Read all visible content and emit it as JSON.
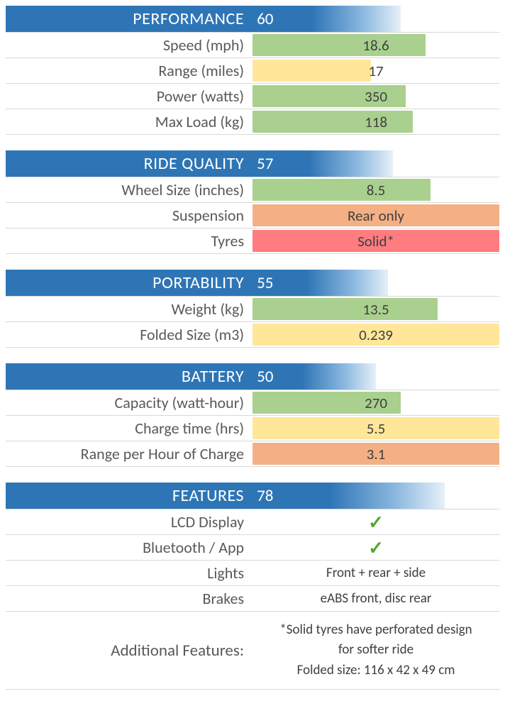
{
  "colors": {
    "header_bg": "#2e75b6",
    "green": "#a9d08e",
    "yellow": "#ffe699",
    "orange": "#f4b084",
    "red": "#ff7c80",
    "check": "#4ea72e"
  },
  "sections": [
    {
      "title": "PERFORMANCE",
      "score": 60,
      "rows": [
        {
          "label": "Speed (mph)",
          "value": "18.6",
          "bar_color": "#a9d08e",
          "bar_pct": 70
        },
        {
          "label": "Range (miles)",
          "value": "17",
          "bar_color": "#ffe699",
          "bar_pct": 48
        },
        {
          "label": "Power (watts)",
          "value": "350",
          "bar_color": "#a9d08e",
          "bar_pct": 62
        },
        {
          "label": "Max Load (kg)",
          "value": "118",
          "bar_color": "#a9d08e",
          "bar_pct": 65
        }
      ]
    },
    {
      "title": "RIDE QUALITY",
      "score": 57,
      "rows": [
        {
          "label": "Wheel Size (inches)",
          "value": "8.5",
          "bar_color": "#a9d08e",
          "bar_pct": 72
        },
        {
          "label": "Suspension",
          "value": "Rear only",
          "bar_color": "#f4b084",
          "bar_pct": 100
        },
        {
          "label": "Tyres",
          "value": "Solid*",
          "bar_color": "#ff7c80",
          "bar_pct": 100
        }
      ]
    },
    {
      "title": "PORTABILITY",
      "score": 55,
      "rows": [
        {
          "label": "Weight (kg)",
          "value": "13.5",
          "bar_color": "#a9d08e",
          "bar_pct": 75
        },
        {
          "label": "Folded Size (m3)",
          "value": "0.239",
          "bar_color": "#ffe699",
          "bar_pct": 100
        }
      ]
    },
    {
      "title": "BATTERY",
      "score": 50,
      "rows": [
        {
          "label": "Capacity (watt-hour)",
          "value": "270",
          "bar_color": "#a9d08e",
          "bar_pct": 60
        },
        {
          "label": "Charge time (hrs)",
          "value": "5.5",
          "bar_color": "#ffe699",
          "bar_pct": 100
        },
        {
          "label": "Range per Hour of Charge",
          "value": "3.1",
          "bar_color": "#f4b084",
          "bar_pct": 100
        }
      ]
    }
  ],
  "features": {
    "title": "FEATURES",
    "score": 78,
    "rows": [
      {
        "label": "LCD Display",
        "value": "✓",
        "is_check": true
      },
      {
        "label": "Bluetooth / App",
        "value": "✓",
        "is_check": true
      },
      {
        "label": "Lights",
        "value": "Front + rear + side",
        "is_check": false
      },
      {
        "label": "Brakes",
        "value": "eABS front,  disc rear",
        "is_check": false
      }
    ],
    "additional_label": "Additional Features:",
    "additional_lines": [
      "*Solid tyres have perforated design",
      "for softer ride",
      "Folded size: 116 x 42 x 49 cm"
    ]
  }
}
